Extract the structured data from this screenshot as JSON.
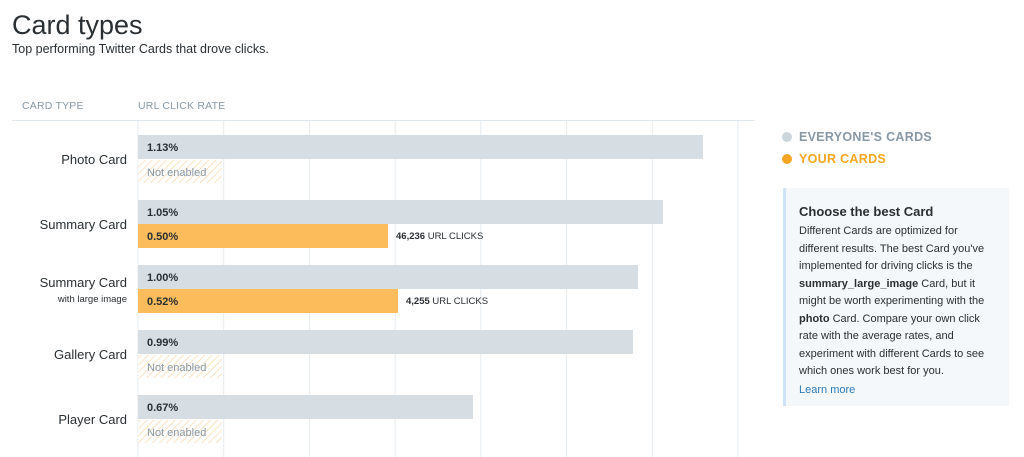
{
  "header": {
    "title": "Card types",
    "subtitle": "Top performing Twitter Cards that drove clicks."
  },
  "columns": {
    "card_type": "CARD TYPE",
    "url_click_rate": "URL CLICK RATE"
  },
  "legend": {
    "everyone": "EVERYONE'S CARDS",
    "yours": "YOUR CARDS"
  },
  "colors": {
    "everyone_bar": "#d6dee4",
    "yours_bar": "#fcbc5c",
    "legend_everyone": "#ccd6dd",
    "legend_yours": "#f6a623",
    "not_enabled_hatch": "#f7d9a8",
    "link": "#2b7bb9"
  },
  "info": {
    "title": "Choose the best Card",
    "p1": "Different Cards are optimized for different results. The best Card you've implemented for driving clicks is the ",
    "b1": "summary_large_image",
    "p2": " Card, but it might be worth experimenting with the ",
    "b2": "photo",
    "p3": " Card. Compare your own click rate with the average rates, and experiment with different Cards to see which ones work best for you.",
    "link": "Learn more"
  },
  "chart_data": {
    "type": "bar",
    "orientation": "horizontal",
    "x_range": [
      0,
      1.2
    ],
    "grid": true,
    "categories": [
      {
        "label": "Photo Card",
        "sublabel": ""
      },
      {
        "label": "Summary Card",
        "sublabel": ""
      },
      {
        "label": "Summary Card",
        "sublabel": "with large image"
      },
      {
        "label": "Gallery Card",
        "sublabel": ""
      },
      {
        "label": "Player Card",
        "sublabel": ""
      }
    ],
    "series": [
      {
        "name": "EVERYONE'S CARDS",
        "values": [
          1.13,
          1.05,
          1.0,
          0.99,
          0.67
        ],
        "labels": [
          "1.13%",
          "1.05%",
          "1.00%",
          "0.99%",
          "0.67%"
        ]
      },
      {
        "name": "YOUR CARDS",
        "values": [
          null,
          0.5,
          0.52,
          null,
          null
        ],
        "labels": [
          "Not enabled",
          "0.50%",
          "0.52%",
          "Not enabled",
          "Not enabled"
        ],
        "clicks": [
          null,
          "46,236",
          "4,255",
          null,
          null
        ]
      }
    ],
    "clicks_suffix": "URL CLICKS",
    "legend_position": "right"
  }
}
